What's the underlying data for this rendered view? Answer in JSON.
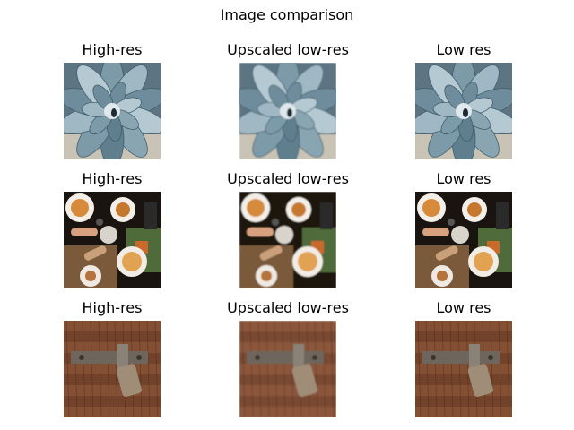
{
  "figure": {
    "title": "Image comparison",
    "rows": [
      {
        "subject": "succulent",
        "panels": [
          {
            "label": "High-res",
            "quality": "high"
          },
          {
            "label": "Upscaled low-res",
            "quality": "upscaled"
          },
          {
            "label": "Low res",
            "quality": "low"
          }
        ]
      },
      {
        "subject": "food-table",
        "panels": [
          {
            "label": "High-res",
            "quality": "high"
          },
          {
            "label": "Upscaled low-res",
            "quality": "upscaled"
          },
          {
            "label": "Low res",
            "quality": "low"
          }
        ]
      },
      {
        "subject": "wooden-door-latch",
        "panels": [
          {
            "label": "High-res",
            "quality": "high"
          },
          {
            "label": "Upscaled low-res",
            "quality": "upscaled"
          },
          {
            "label": "Low res",
            "quality": "low"
          }
        ]
      }
    ]
  }
}
